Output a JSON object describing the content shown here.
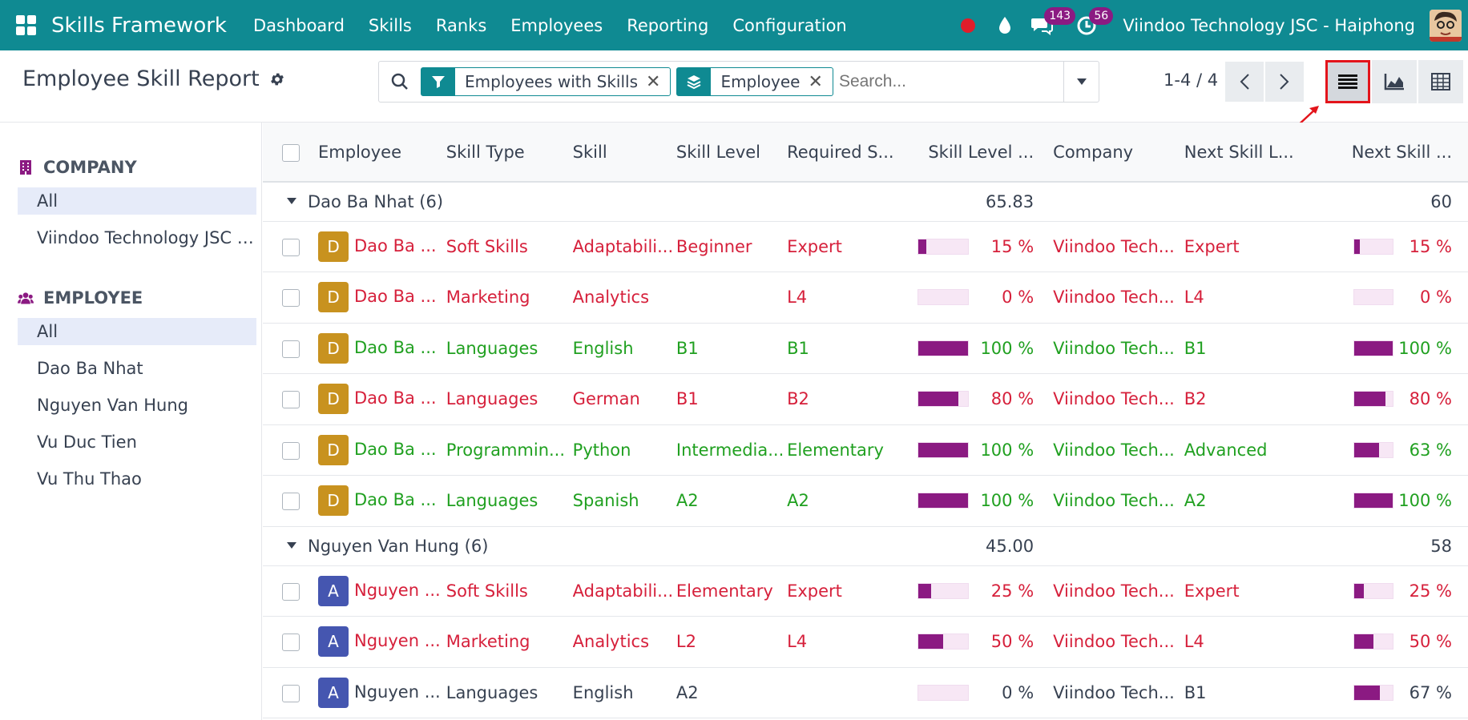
{
  "app": {
    "brand": "Skills Framework",
    "menu": [
      "Dashboard",
      "Skills",
      "Ranks",
      "Employees",
      "Reporting",
      "Configuration"
    ],
    "messages_count": "143",
    "activities_count": "56",
    "company": "Viindoo Technology JSC - Haiphong"
  },
  "colors": {
    "navbar": "#0f8a92",
    "accent": "#8b1a82",
    "red_text": "#d6203b",
    "green_text": "#20a020"
  },
  "control": {
    "title": "Employee Skill Report",
    "facets": [
      "Employees with Skills",
      "Employee"
    ],
    "search_placeholder": "Search...",
    "pager": "1-4 / 4"
  },
  "sidepanel": {
    "company": {
      "header": "COMPANY",
      "items": [
        "All",
        "Viindoo Technology JSC - ..."
      ]
    },
    "employee": {
      "header": "EMPLOYEE",
      "items": [
        "All",
        "Dao Ba Nhat",
        "Nguyen Van Hung",
        "Vu Duc Tien",
        "Vu Thu Thao"
      ]
    }
  },
  "list": {
    "columns": [
      "Employee",
      "Skill Type",
      "Skill",
      "Skill Level",
      "Required S...",
      "Skill Level ...",
      "Company",
      "Next Skill L...",
      "Next Skill ..."
    ],
    "groups": [
      {
        "label": "Dao Ba Nhat (6)",
        "sum1": "65.83",
        "sum2": "60",
        "rows": [
          {
            "initial": "D",
            "emp": "Dao Ba ...",
            "type": "Soft Skills",
            "skill": "Adaptabili...",
            "level": "Beginner",
            "req": "Expert",
            "pct": 15,
            "pct_label": "15 %",
            "company": "Viindoo Tech...",
            "next": "Expert",
            "npct": 15,
            "npct_label": "15 %",
            "tone": "red"
          },
          {
            "initial": "D",
            "emp": "Dao Ba ...",
            "type": "Marketing",
            "skill": "Analytics",
            "level": "",
            "req": "L4",
            "pct": 0,
            "pct_label": "0 %",
            "company": "Viindoo Tech...",
            "next": "L4",
            "npct": 0,
            "npct_label": "0 %",
            "tone": "red"
          },
          {
            "initial": "D",
            "emp": "Dao Ba ...",
            "type": "Languages",
            "skill": "English",
            "level": "B1",
            "req": "B1",
            "pct": 100,
            "pct_label": "100 %",
            "company": "Viindoo Tech...",
            "next": "B1",
            "npct": 100,
            "npct_label": "100 %",
            "tone": "green"
          },
          {
            "initial": "D",
            "emp": "Dao Ba ...",
            "type": "Languages",
            "skill": "German",
            "level": "B1",
            "req": "B2",
            "pct": 80,
            "pct_label": "80 %",
            "company": "Viindoo Tech...",
            "next": "B2",
            "npct": 80,
            "npct_label": "80 %",
            "tone": "red"
          },
          {
            "initial": "D",
            "emp": "Dao Ba ...",
            "type": "Programmin...",
            "skill": "Python",
            "level": "Intermedia...",
            "req": "Elementary",
            "pct": 100,
            "pct_label": "100 %",
            "company": "Viindoo Tech...",
            "next": "Advanced",
            "npct": 63,
            "npct_label": "63 %",
            "tone": "green"
          },
          {
            "initial": "D",
            "emp": "Dao Ba ...",
            "type": "Languages",
            "skill": "Spanish",
            "level": "A2",
            "req": "A2",
            "pct": 100,
            "pct_label": "100 %",
            "company": "Viindoo Tech...",
            "next": "A2",
            "npct": 100,
            "npct_label": "100 %",
            "tone": "green"
          }
        ]
      },
      {
        "label": "Nguyen Van Hung (6)",
        "sum1": "45.00",
        "sum2": "58",
        "rows": [
          {
            "initial": "A",
            "emp": "Nguyen ...",
            "type": "Soft Skills",
            "skill": "Adaptabili...",
            "level": "Elementary",
            "req": "Expert",
            "pct": 25,
            "pct_label": "25 %",
            "company": "Viindoo Tech...",
            "next": "Expert",
            "npct": 25,
            "npct_label": "25 %",
            "tone": "red"
          },
          {
            "initial": "A",
            "emp": "Nguyen ...",
            "type": "Marketing",
            "skill": "Analytics",
            "level": "L2",
            "req": "L4",
            "pct": 50,
            "pct_label": "50 %",
            "company": "Viindoo Tech...",
            "next": "L4",
            "npct": 50,
            "npct_label": "50 %",
            "tone": "red"
          },
          {
            "initial": "A",
            "emp": "Nguyen ...",
            "type": "Languages",
            "skill": "English",
            "level": "A2",
            "req": "",
            "pct": 0,
            "pct_label": "0 %",
            "company": "Viindoo Tech...",
            "next": "B1",
            "npct": 67,
            "npct_label": "67 %",
            "tone": "grey"
          }
        ]
      }
    ]
  }
}
